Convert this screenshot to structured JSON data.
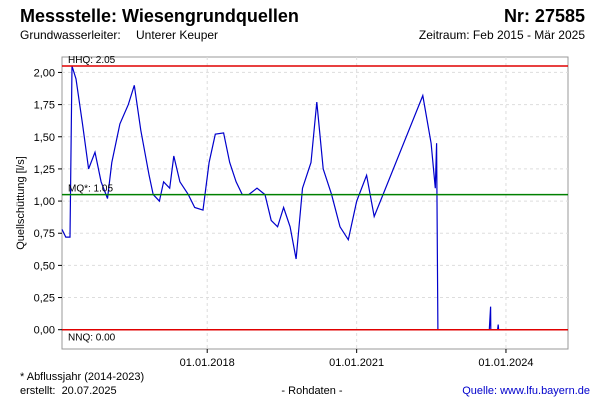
{
  "header": {
    "title": "Messstelle: Wiesengrundquellen",
    "number": "Nr: 27585",
    "aquifer_label": "Grundwasserleiter:",
    "aquifer": "Unterer Keuper",
    "period": "Zeitraum: Feb 2015 - Mär 2025"
  },
  "chart_data": {
    "type": "line",
    "y_label": "Quellschüttung [l/s]",
    "xlim": [
      "2015-02-01",
      "2025-03-31"
    ],
    "xticks": [
      {
        "value": "2018-01-01",
        "label": "01.01.2018"
      },
      {
        "value": "2021-01-01",
        "label": "01.01.2021"
      },
      {
        "value": "2024-01-01",
        "label": "01.01.2024"
      }
    ],
    "ylim": [
      -0.15,
      2.12
    ],
    "yticks": [
      {
        "value": 0,
        "label": "0,00"
      },
      {
        "value": 0.25,
        "label": "0,25"
      },
      {
        "value": 0.5,
        "label": "0,50"
      },
      {
        "value": 0.75,
        "label": "0,75"
      },
      {
        "value": 1,
        "label": "1,00"
      },
      {
        "value": 1.25,
        "label": "1,25"
      },
      {
        "value": 1.5,
        "label": "1,50"
      },
      {
        "value": 1.75,
        "label": "1,75"
      },
      {
        "value": 2,
        "label": "2,00"
      }
    ],
    "grid": true,
    "reference_lines": [
      {
        "label": "HHQ: 2.05",
        "value": 2.05,
        "color": "#e00000"
      },
      {
        "label": "MQ*: 1.05",
        "value": 1.05,
        "color": "#008000"
      },
      {
        "label": "NNQ: 0.00",
        "value": 0.0,
        "color": "#e00000"
      }
    ],
    "x": [
      "2015-02-01",
      "2015-03-01",
      "2015-04-01",
      "2015-04-15",
      "2015-05-15",
      "2015-07-01",
      "2015-08-15",
      "2015-10-01",
      "2015-11-15",
      "2016-01-01",
      "2016-02-01",
      "2016-04-01",
      "2016-06-01",
      "2016-07-15",
      "2016-09-01",
      "2016-11-01",
      "2016-12-01",
      "2017-01-15",
      "2017-02-15",
      "2017-04-01",
      "2017-05-01",
      "2017-06-15",
      "2017-08-15",
      "2017-10-01",
      "2017-12-01",
      "2018-01-15",
      "2018-03-01",
      "2018-05-01",
      "2018-06-15",
      "2018-08-01",
      "2018-09-15",
      "2018-11-01",
      "2019-01-01",
      "2019-03-01",
      "2019-04-15",
      "2019-06-01",
      "2019-07-15",
      "2019-09-01",
      "2019-10-15",
      "2019-12-01",
      "2020-02-01",
      "2020-03-15",
      "2020-05-01",
      "2020-07-01",
      "2020-09-01",
      "2020-11-01",
      "2021-01-01",
      "2021-03-15",
      "2021-05-10",
      "2022-05-01",
      "2022-07-01",
      "2022-08-01",
      "2022-08-10",
      "2022-08-20",
      "2023-01-01",
      "2023-09-01",
      "2023-09-10",
      "2023-09-12",
      "2023-10-01",
      "2023-11-01",
      "2023-11-05",
      "2023-11-08"
    ],
    "series": [
      {
        "color": "#0000cc",
        "values": [
          0.78,
          0.72,
          0.72,
          2.05,
          1.95,
          1.6,
          1.25,
          1.38,
          1.15,
          1.02,
          1.3,
          1.6,
          1.75,
          1.9,
          1.55,
          1.2,
          1.05,
          1.0,
          1.15,
          1.1,
          1.35,
          1.15,
          1.05,
          0.95,
          0.93,
          1.3,
          1.52,
          1.53,
          1.3,
          1.15,
          1.05,
          1.05,
          1.1,
          1.05,
          0.85,
          0.8,
          0.95,
          0.8,
          0.55,
          1.1,
          1.3,
          1.77,
          1.25,
          1.05,
          0.8,
          0.7,
          1.0,
          1.2,
          0.88,
          1.82,
          1.45,
          1.1,
          1.45,
          0.0,
          null,
          0.0,
          0.18,
          0.0,
          null,
          0.0,
          0.04,
          0.0
        ]
      }
    ]
  },
  "footer": {
    "note": "* Abflussjahr (2014-2023)",
    "created": "erstellt:  20.07.2025",
    "raw": "- Rohdaten -",
    "source": "Quelle: www.lfu.bayern.de"
  }
}
